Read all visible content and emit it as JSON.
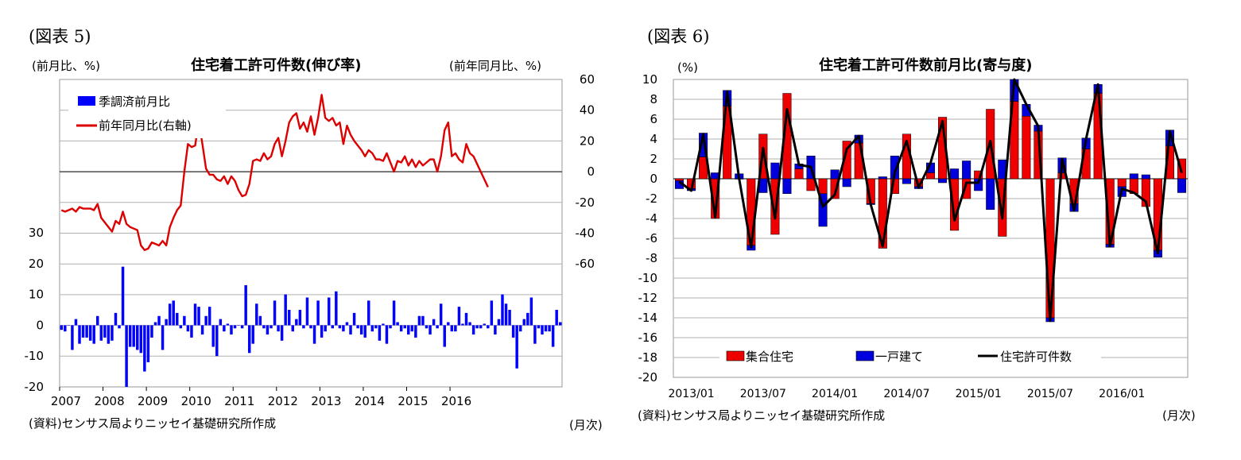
{
  "chart_data": [
    {
      "type": "bar+line",
      "figure_label": "(図表 5)",
      "title": "住宅着工許可件数(伸び率)",
      "ylabel_left": "(前月比、%)",
      "ylabel_right": "(前年同月比、%)",
      "xlabel": "(月次)",
      "source": "(資料)センサス局よりニッセイ基礎研究所作成",
      "ylim_left": [
        -20,
        30
      ],
      "yticks_left": [
        -20,
        -10,
        0,
        10,
        20,
        30
      ],
      "ylim_right": [
        -60,
        60
      ],
      "yticks_right": [
        -60,
        -40,
        -20,
        0,
        20,
        40,
        60
      ],
      "xticks": [
        "2007",
        "2008",
        "2009",
        "2010",
        "2011",
        "2012",
        "2013",
        "2014",
        "2015",
        "2016"
      ],
      "legend_position": "top-left",
      "start": "2007-01",
      "series": [
        {
          "name": "季調済前月比",
          "kind": "bar",
          "axis": "left",
          "color": "#0000ff",
          "values": [
            -1.5,
            -2,
            0,
            -8,
            2,
            -6,
            -4,
            -4,
            -5,
            -6,
            3,
            -5,
            -4,
            -6,
            -5,
            4,
            -1,
            19,
            -20,
            -7,
            -7,
            -8,
            -9,
            -15,
            -12,
            -4,
            1,
            3,
            -8,
            2,
            7,
            8,
            4,
            -1,
            3,
            -2,
            -4,
            7,
            6,
            -3,
            3,
            6,
            -7,
            -10,
            2,
            -2,
            0.5,
            -3,
            -1,
            0,
            -1,
            13,
            -9,
            -6,
            7,
            3,
            -1,
            -3,
            -1,
            8,
            -2,
            -5,
            10,
            5,
            -2,
            2,
            5,
            -1,
            9,
            -1,
            -6,
            8,
            -4,
            -2,
            9,
            -1,
            11,
            -1,
            -2,
            1,
            -3,
            4,
            -1,
            -3,
            -4,
            8,
            -2,
            -1,
            -5,
            0.5,
            -6,
            -1,
            8,
            1,
            -2,
            -1,
            -3,
            -2,
            -4,
            3,
            3,
            -1,
            -3,
            2,
            -1,
            7,
            -7,
            1,
            -2,
            -2,
            6,
            0.5,
            4,
            1,
            -3,
            -1,
            -1,
            0.5,
            -1,
            8,
            -3,
            2,
            10,
            7,
            5,
            -4,
            -14,
            -2,
            2,
            4,
            9,
            -6,
            -1,
            -3,
            -2,
            -2,
            -7,
            5,
            1
          ]
        },
        {
          "name": "前年同月比(右軸)",
          "kind": "line",
          "axis": "right",
          "color": "#dd0000",
          "values": [
            -25,
            -26,
            -25,
            -24,
            -26,
            -23,
            -24,
            -24,
            -24,
            -25,
            -21,
            -30,
            -33,
            -36,
            -39,
            -32,
            -34,
            -26,
            -34,
            -36,
            -37,
            -38,
            -48,
            -51,
            -50,
            -46,
            -47,
            -48,
            -45,
            -48,
            -36,
            -30,
            -25,
            -22,
            0,
            18,
            16,
            17,
            33,
            18,
            2,
            -2,
            -2,
            -5,
            -6,
            -3,
            -8,
            -3,
            -6,
            -12,
            -16,
            -15,
            -8,
            7,
            8,
            7,
            12,
            8,
            10,
            18,
            22,
            10,
            20,
            32,
            36,
            38,
            28,
            32,
            26,
            36,
            24,
            35,
            50,
            35,
            33,
            35,
            30,
            32,
            18,
            30,
            24,
            20,
            17,
            14,
            10,
            14,
            12,
            8,
            8,
            7,
            12,
            6,
            0,
            7,
            6,
            10,
            4,
            8,
            3,
            7,
            4,
            6,
            8,
            8,
            0,
            10,
            27,
            32,
            10,
            12,
            8,
            6,
            18,
            12,
            10,
            5,
            0,
            -5,
            -10
          ]
        }
      ]
    },
    {
      "type": "stacked-bar+line",
      "figure_label": "(図表 6)",
      "title": "住宅着工許可件数前月比(寄与度)",
      "ylabel": "(%)",
      "xlabel": "(月次)",
      "source": "(資料)センサス局よりニッセイ基礎研究所作成",
      "ylim": [
        -20,
        10
      ],
      "yticks": [
        -20,
        -18,
        -16,
        -14,
        -12,
        -10,
        -8,
        -6,
        -4,
        -2,
        0,
        2,
        4,
        6,
        8,
        10
      ],
      "xticks": [
        "2013/01",
        "2013/07",
        "2014/01",
        "2014/07",
        "2015/01",
        "2015/07",
        "2016/01"
      ],
      "start": "2012-12",
      "legend_position": "bottom",
      "series": [
        {
          "name": "集合住宅",
          "kind": "bar",
          "color": "#ee0000",
          "values": [
            -0.2,
            -1,
            2.2,
            -4,
            7.3,
            0,
            -6.7,
            4.5,
            -5.6,
            8.6,
            1,
            -1.2,
            -1.5,
            -2,
            3.8,
            3.6,
            -2.5,
            -7,
            -1.5,
            4.5,
            -0.8,
            0.6,
            6.2,
            -5.2,
            -2,
            0.8,
            7,
            -5.8,
            7.8,
            6.3,
            4.8,
            -14,
            0.6,
            -2.5,
            3,
            8.6,
            -6.6,
            -0.8,
            -1.5,
            -2.8,
            -7.2,
            3.3,
            2
          ]
        },
        {
          "name": "一戸建て",
          "kind": "bar",
          "color": "#0000dd",
          "values": [
            -0.8,
            -0.2,
            2.4,
            0.6,
            1.6,
            0.5,
            -0.5,
            -1.4,
            1.6,
            -1.5,
            0.5,
            2.3,
            -3.3,
            0.9,
            -0.8,
            0.8,
            -0.1,
            0.2,
            2.3,
            -0.5,
            -0.2,
            1,
            -0.4,
            1,
            1.8,
            -1.2,
            -3.1,
            1.9,
            2.2,
            1.2,
            0.6,
            -0.4,
            1.5,
            -0.8,
            1.1,
            0.9,
            -0.3,
            -1,
            0.5,
            0.4,
            -0.7,
            1.6,
            -1.4
          ]
        },
        {
          "name": "住宅許可件数",
          "kind": "line",
          "color": "#000000",
          "values": [
            -0.3,
            -1.2,
            4.5,
            -3.9,
            8.8,
            0,
            -6.9,
            3.1,
            -4,
            7,
            1.4,
            1.2,
            -2.8,
            -1.6,
            3,
            4.3,
            -2.6,
            -6.8,
            0.6,
            3.8,
            -0.9,
            1.6,
            5.8,
            -4.2,
            -0.4,
            -0.4,
            3.8,
            -4,
            10,
            7.5,
            5.3,
            -14.3,
            2,
            -3.2,
            4,
            9.5,
            -6.8,
            -1,
            -1.4,
            -2.3,
            -7.5,
            4.8,
            0.6
          ]
        }
      ]
    }
  ]
}
